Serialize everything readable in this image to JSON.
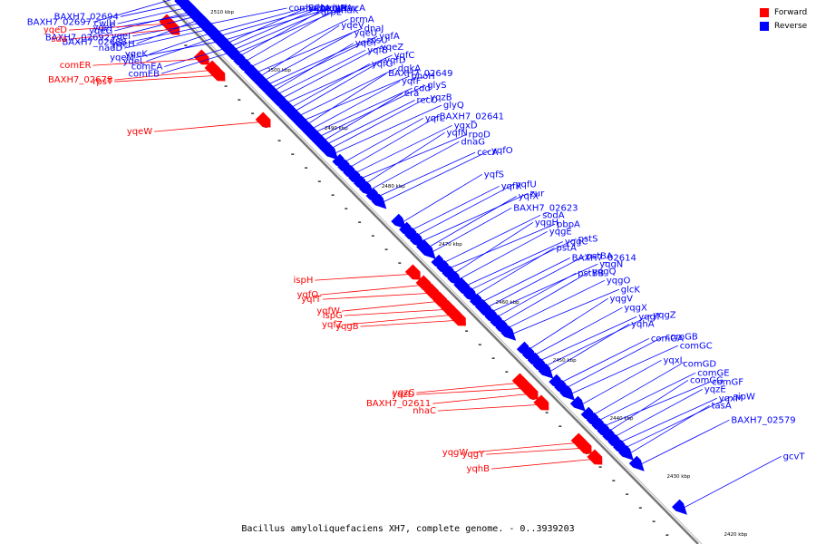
{
  "legend": {
    "forward_label": "Forward",
    "reverse_label": "Reverse",
    "forward_color": "#ff0000",
    "reverse_color": "#0000ff"
  },
  "colors": {
    "backbone": "#777777",
    "forward": "#ff0000",
    "reverse": "#0000ff"
  },
  "caption": "Bacillus amyloliquefaciens XH7, complete genome. - 0..3939203",
  "axis": {
    "unit": "kbp",
    "ticks": [
      "2510 kbp",
      "2500 kbp",
      "2490 kbp",
      "2480 kbp",
      "2470 kbp",
      "2460 kbp",
      "2450 kbp",
      "2440 kbp",
      "2430 kbp",
      "2420 kbp"
    ]
  },
  "genes": [
    {
      "name": "comEC",
      "strand": "reverse",
      "t": 0.05
    },
    {
      "name": "holA",
      "strand": "reverse",
      "t": 0.065
    },
    {
      "name": "spoIIP",
      "strand": "reverse",
      "t": 0.072
    },
    {
      "name": "gpr",
      "strand": "reverse",
      "t": 0.08
    },
    {
      "name": "yqxA",
      "strand": "reverse",
      "t": 0.086
    },
    {
      "name": "hemN",
      "strand": "reverse",
      "t": 0.092
    },
    {
      "name": "lepA",
      "strand": "reverse",
      "t": 0.098
    },
    {
      "name": "hrcA",
      "strand": "reverse",
      "t": 0.104
    },
    {
      "name": "grpE",
      "strand": "reverse",
      "t": 0.11
    },
    {
      "name": "dnaK",
      "strand": "reverse",
      "t": 0.12
    },
    {
      "name": "prmA",
      "strand": "reverse",
      "t": 0.13
    },
    {
      "name": "dnaJ",
      "strand": "reverse",
      "t": 0.14
    },
    {
      "name": "yqeV",
      "strand": "reverse",
      "t": 0.148
    },
    {
      "name": "yqeU",
      "strand": "reverse",
      "t": 0.155
    },
    {
      "name": "rpsU",
      "strand": "reverse",
      "t": 0.162
    },
    {
      "name": "yqfA",
      "strand": "reverse",
      "t": 0.168
    },
    {
      "name": "yqeY",
      "strand": "reverse",
      "t": 0.174
    },
    {
      "name": "yqfB",
      "strand": "reverse",
      "t": 0.18
    },
    {
      "name": "yqeZ",
      "strand": "reverse",
      "t": 0.188
    },
    {
      "name": "yqfC",
      "strand": "reverse",
      "t": 0.196
    },
    {
      "name": "yqfG",
      "strand": "reverse",
      "t": 0.205
    },
    {
      "name": "yqfD",
      "strand": "reverse",
      "t": 0.212
    },
    {
      "name": "dgkA",
      "strand": "reverse",
      "t": 0.22
    },
    {
      "name": "phoH",
      "strand": "reverse",
      "t": 0.228
    },
    {
      "name": "BAXH7_02649",
      "strand": "reverse",
      "t": 0.236
    },
    {
      "name": "yqfF",
      "strand": "reverse",
      "t": 0.244
    },
    {
      "name": "cdd",
      "strand": "reverse",
      "t": 0.25
    },
    {
      "name": "glyS",
      "strand": "reverse",
      "t": 0.258
    },
    {
      "name": "era",
      "strand": "reverse",
      "t": 0.266
    },
    {
      "name": "recO",
      "strand": "reverse",
      "t": 0.272
    },
    {
      "name": "yqzB",
      "strand": "reverse",
      "t": 0.28
    },
    {
      "name": "glyQ",
      "strand": "reverse",
      "t": 0.288
    },
    {
      "name": "yqfL",
      "strand": "reverse",
      "t": 0.305
    },
    {
      "name": "BAXH7_02641",
      "strand": "reverse",
      "t": 0.315
    },
    {
      "name": "yqxD",
      "strand": "reverse",
      "t": 0.325
    },
    {
      "name": "rpoD",
      "strand": "reverse",
      "t": 0.335
    },
    {
      "name": "yqfN",
      "strand": "reverse",
      "t": 0.345
    },
    {
      "name": "dnaG",
      "strand": "reverse",
      "t": 0.355
    },
    {
      "name": "cccA",
      "strand": "reverse",
      "t": 0.368
    },
    {
      "name": "yqfO",
      "strand": "reverse",
      "t": 0.378
    },
    {
      "name": "yqfS",
      "strand": "reverse",
      "t": 0.415
    },
    {
      "name": "yqfR",
      "strand": "reverse",
      "t": 0.43
    },
    {
      "name": "yqfU",
      "strand": "reverse",
      "t": 0.44
    },
    {
      "name": "zur",
      "strand": "reverse",
      "t": 0.45
    },
    {
      "name": "BAXH7_02623",
      "strand": "reverse",
      "t": 0.47
    },
    {
      "name": "yqfX",
      "strand": "reverse",
      "t": 0.462
    },
    {
      "name": "sodA",
      "strand": "reverse",
      "t": 0.49
    },
    {
      "name": "pbpA",
      "strand": "reverse",
      "t": 0.5
    },
    {
      "name": "yqgH",
      "strand": "reverse",
      "t": 0.51
    },
    {
      "name": "yqgE",
      "strand": "reverse",
      "t": 0.52
    },
    {
      "name": "yqgC",
      "strand": "reverse",
      "t": 0.532
    },
    {
      "name": "pstS",
      "strand": "reverse",
      "t": 0.54
    },
    {
      "name": "pstA",
      "strand": "reverse",
      "t": 0.55
    },
    {
      "name": "BAXH7_02614",
      "strand": "reverse",
      "t": 0.562
    },
    {
      "name": "pstBA",
      "strand": "reverse",
      "t": 0.572
    },
    {
      "name": "yqgN",
      "strand": "reverse",
      "t": 0.58
    },
    {
      "name": "pstBB",
      "strand": "reverse",
      "t": 0.59
    },
    {
      "name": "yqgQ",
      "strand": "reverse",
      "t": 0.6
    },
    {
      "name": "yqgO",
      "strand": "reverse",
      "t": 0.61
    },
    {
      "name": "glcK",
      "strand": "reverse",
      "t": 0.62
    },
    {
      "name": "yqgV",
      "strand": "reverse",
      "t": 0.65
    },
    {
      "name": "yqgX",
      "strand": "reverse",
      "t": 0.66
    },
    {
      "name": "yqgT",
      "strand": "reverse",
      "t": 0.67
    },
    {
      "name": "yqgZ",
      "strand": "reverse",
      "t": 0.68
    },
    {
      "name": "yqhA",
      "strand": "reverse",
      "t": 0.69
    },
    {
      "name": "comGA",
      "strand": "reverse",
      "t": 0.71
    },
    {
      "name": "comGB",
      "strand": "reverse",
      "t": 0.72
    },
    {
      "name": "comGC",
      "strand": "reverse",
      "t": 0.73
    },
    {
      "name": "yqxL",
      "strand": "reverse",
      "t": 0.75
    },
    {
      "name": "comGD",
      "strand": "reverse",
      "t": 0.77
    },
    {
      "name": "comGE",
      "strand": "reverse",
      "t": 0.78
    },
    {
      "name": "comGF",
      "strand": "reverse",
      "t": 0.79
    },
    {
      "name": "comGG",
      "strand": "reverse",
      "t": 0.8
    },
    {
      "name": "yqzE",
      "strand": "reverse",
      "t": 0.81
    },
    {
      "name": "yqxM",
      "strand": "reverse",
      "t": 0.82
    },
    {
      "name": "sipW",
      "strand": "reverse",
      "t": 0.83
    },
    {
      "name": "tasA",
      "strand": "reverse",
      "t": 0.84
    },
    {
      "name": "BAXH7_02579",
      "strand": "reverse",
      "t": 0.86
    },
    {
      "name": "gcvT",
      "strand": "reverse",
      "t": 0.94
    },
    {
      "name": "BAXH7_02697",
      "strand": "reverse",
      "t": 0.0
    },
    {
      "name": "BAXH7_02694",
      "strand": "reverse",
      "t": 0.01
    },
    {
      "name": "cwlH",
      "strand": "reverse",
      "t": 0.018
    },
    {
      "name": "yqeG",
      "strand": "reverse",
      "t": 0.026
    },
    {
      "name": "BAXH7_02692",
      "strand": "reverse",
      "t": 0.034
    },
    {
      "name": "yqeH",
      "strand": "reverse",
      "t": 0.04
    },
    {
      "name": "yqeI",
      "strand": "reverse",
      "t": 0.046
    },
    {
      "name": "BAXH7_02688",
      "strand": "reverse",
      "t": 0.052
    },
    {
      "name": "nadD",
      "strand": "reverse",
      "t": 0.058
    },
    {
      "name": "yqeK",
      "strand": "reverse",
      "t": 0.064
    },
    {
      "name": "yqeL",
      "strand": "reverse",
      "t": 0.072
    },
    {
      "name": "yqeF",
      "strand": "reverse",
      "t": 0.03
    },
    {
      "name": "yqeM",
      "strand": "reverse",
      "t": 0.08
    },
    {
      "name": "comEA",
      "strand": "reverse",
      "t": 0.092
    },
    {
      "name": "comEB",
      "strand": "reverse",
      "t": 0.1
    },
    {
      "name": "yqeD",
      "strand": "forward",
      "t": 0.02
    },
    {
      "name": "sda",
      "strand": "forward",
      "t": 0.03
    },
    {
      "name": "comER",
      "strand": "forward",
      "t": 0.085
    },
    {
      "name": "BAXH7_02678",
      "strand": "forward",
      "t": 0.105
    },
    {
      "name": "rpsT",
      "strand": "forward",
      "t": 0.115
    },
    {
      "name": "yqeW",
      "strand": "forward",
      "t": 0.2
    },
    {
      "name": "ispH",
      "strand": "forward",
      "t": 0.48
    },
    {
      "name": "yqfQ",
      "strand": "forward",
      "t": 0.5
    },
    {
      "name": "yqfT",
      "strand": "forward",
      "t": 0.515
    },
    {
      "name": "yqfW",
      "strand": "forward",
      "t": 0.53
    },
    {
      "name": "ispG",
      "strand": "forward",
      "t": 0.545
    },
    {
      "name": "yqfZ",
      "strand": "forward",
      "t": 0.555
    },
    {
      "name": "yqgB",
      "strand": "forward",
      "t": 0.565
    },
    {
      "name": "yqzC",
      "strand": "forward",
      "t": 0.68
    },
    {
      "name": "yqzD",
      "strand": "forward",
      "t": 0.69
    },
    {
      "name": "BAXH7_02611",
      "strand": "forward",
      "t": 0.7
    },
    {
      "name": "nhaC",
      "strand": "forward",
      "t": 0.72
    },
    {
      "name": "yqgW",
      "strand": "forward",
      "t": 0.79
    },
    {
      "name": "yqgY",
      "strand": "forward",
      "t": 0.8
    },
    {
      "name": "yqhB",
      "strand": "forward",
      "t": 0.82
    }
  ]
}
